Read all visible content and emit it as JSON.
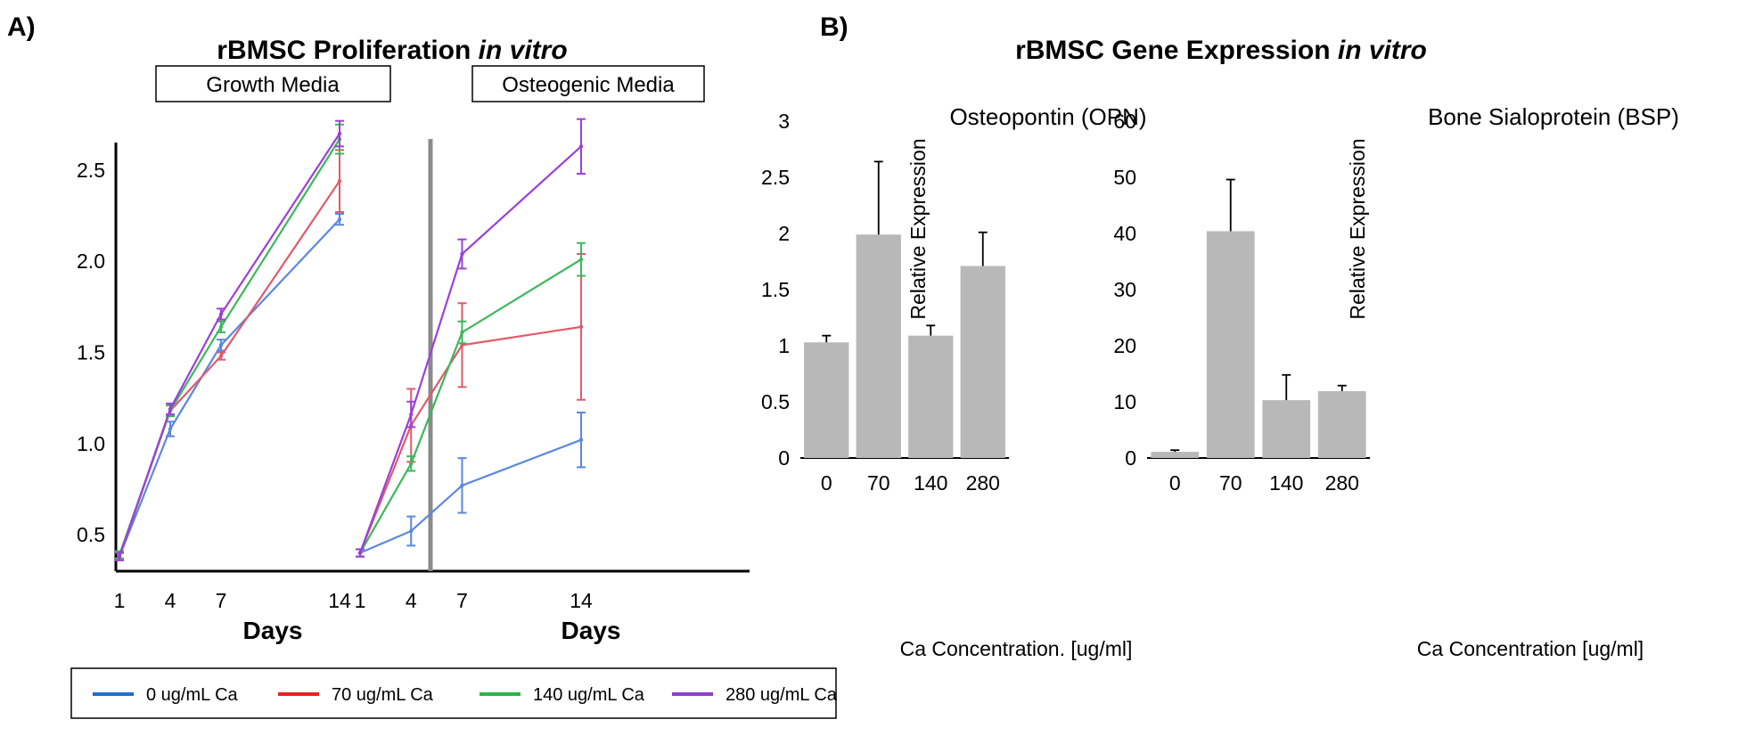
{
  "panel_a_label": "A)",
  "panel_b_label": "B)",
  "chart_data": [
    {
      "type": "line",
      "title": "rBMSC Proliferation",
      "title_italic": "in vitro",
      "facets": [
        "Growth Media",
        "Osteogenic Media"
      ],
      "x": [
        1,
        4,
        7,
        14
      ],
      "xlabel": "Days",
      "ylabel": "",
      "yticks": [
        "0.5",
        "1.0",
        "1.5",
        "2.0",
        "2.5"
      ],
      "ylim": [
        0.3,
        2.7
      ],
      "series": [
        {
          "name": "0 ug/mL Ca",
          "color": "#5b87e0",
          "legend_color": "#1f6fd0",
          "growth": [
            0.38,
            1.08,
            1.54,
            2.23
          ],
          "growth_err": [
            0.02,
            0.04,
            0.03,
            0.03
          ],
          "osteo": [
            0.4,
            0.52,
            0.77,
            1.02
          ],
          "osteo_err": [
            0.02,
            0.08,
            0.15,
            0.15
          ]
        },
        {
          "name": "70 ug/mL Ca",
          "color": "#e05a6a",
          "legend_color": "#e8221f",
          "growth": [
            0.38,
            1.18,
            1.48,
            2.44
          ],
          "growth_err": [
            0.02,
            0.03,
            0.02,
            0.17
          ],
          "osteo": [
            0.4,
            1.1,
            1.54,
            1.64
          ],
          "osteo_err": [
            0.02,
            0.2,
            0.23,
            0.4
          ]
        },
        {
          "name": "140 ug/mL Ca",
          "color": "#3cb85a",
          "legend_color": "#2cb34a",
          "growth": [
            0.39,
            1.18,
            1.64,
            2.67
          ],
          "growth_err": [
            0.02,
            0.03,
            0.03,
            0.08
          ],
          "osteo": [
            0.4,
            0.89,
            1.61,
            2.01
          ],
          "osteo_err": [
            0.02,
            0.04,
            0.06,
            0.09
          ]
        },
        {
          "name": "280 ug/mL Ca",
          "color": "#9b40d8",
          "legend_color": "#8c3fcb",
          "growth": [
            0.38,
            1.19,
            1.71,
            2.7
          ],
          "growth_err": [
            0.02,
            0.03,
            0.03,
            0.07
          ],
          "osteo": [
            0.4,
            1.16,
            2.04,
            2.63
          ],
          "osteo_err": [
            0.02,
            0.07,
            0.08,
            0.15
          ]
        }
      ]
    },
    {
      "type": "bar",
      "title": "rBMSC Gene Expression",
      "title_italic": "in vitro",
      "subtitle": "Osteopontin (OPN)",
      "categories": [
        "0",
        "70",
        "140",
        "280"
      ],
      "values": [
        1.03,
        1.99,
        1.09,
        1.71
      ],
      "errors": [
        0.06,
        0.65,
        0.09,
        0.3
      ],
      "ylim": [
        0,
        3
      ],
      "yticks": [
        "0",
        "0.5",
        "1",
        "1.5",
        "2",
        "2.5",
        "3"
      ],
      "xlabel": "Ca Concentration. [ug/ml]",
      "ylabel": "Relative Expression",
      "bar_color": "#b8b8b8"
    },
    {
      "type": "bar",
      "subtitle": "Bone Sialoprotein (BSP)",
      "categories": [
        "0",
        "70",
        "140",
        "280"
      ],
      "values": [
        1.1,
        40.4,
        10.3,
        11.9
      ],
      "errors": [
        0.3,
        9.2,
        4.5,
        1.0
      ],
      "ylim": [
        0,
        60
      ],
      "yticks": [
        "0",
        "10",
        "20",
        "30",
        "40",
        "50",
        "60"
      ],
      "xlabel": "Ca Concentration [ug/ml]",
      "ylabel": "Relative Expression",
      "bar_color": "#b8b8b8"
    }
  ]
}
